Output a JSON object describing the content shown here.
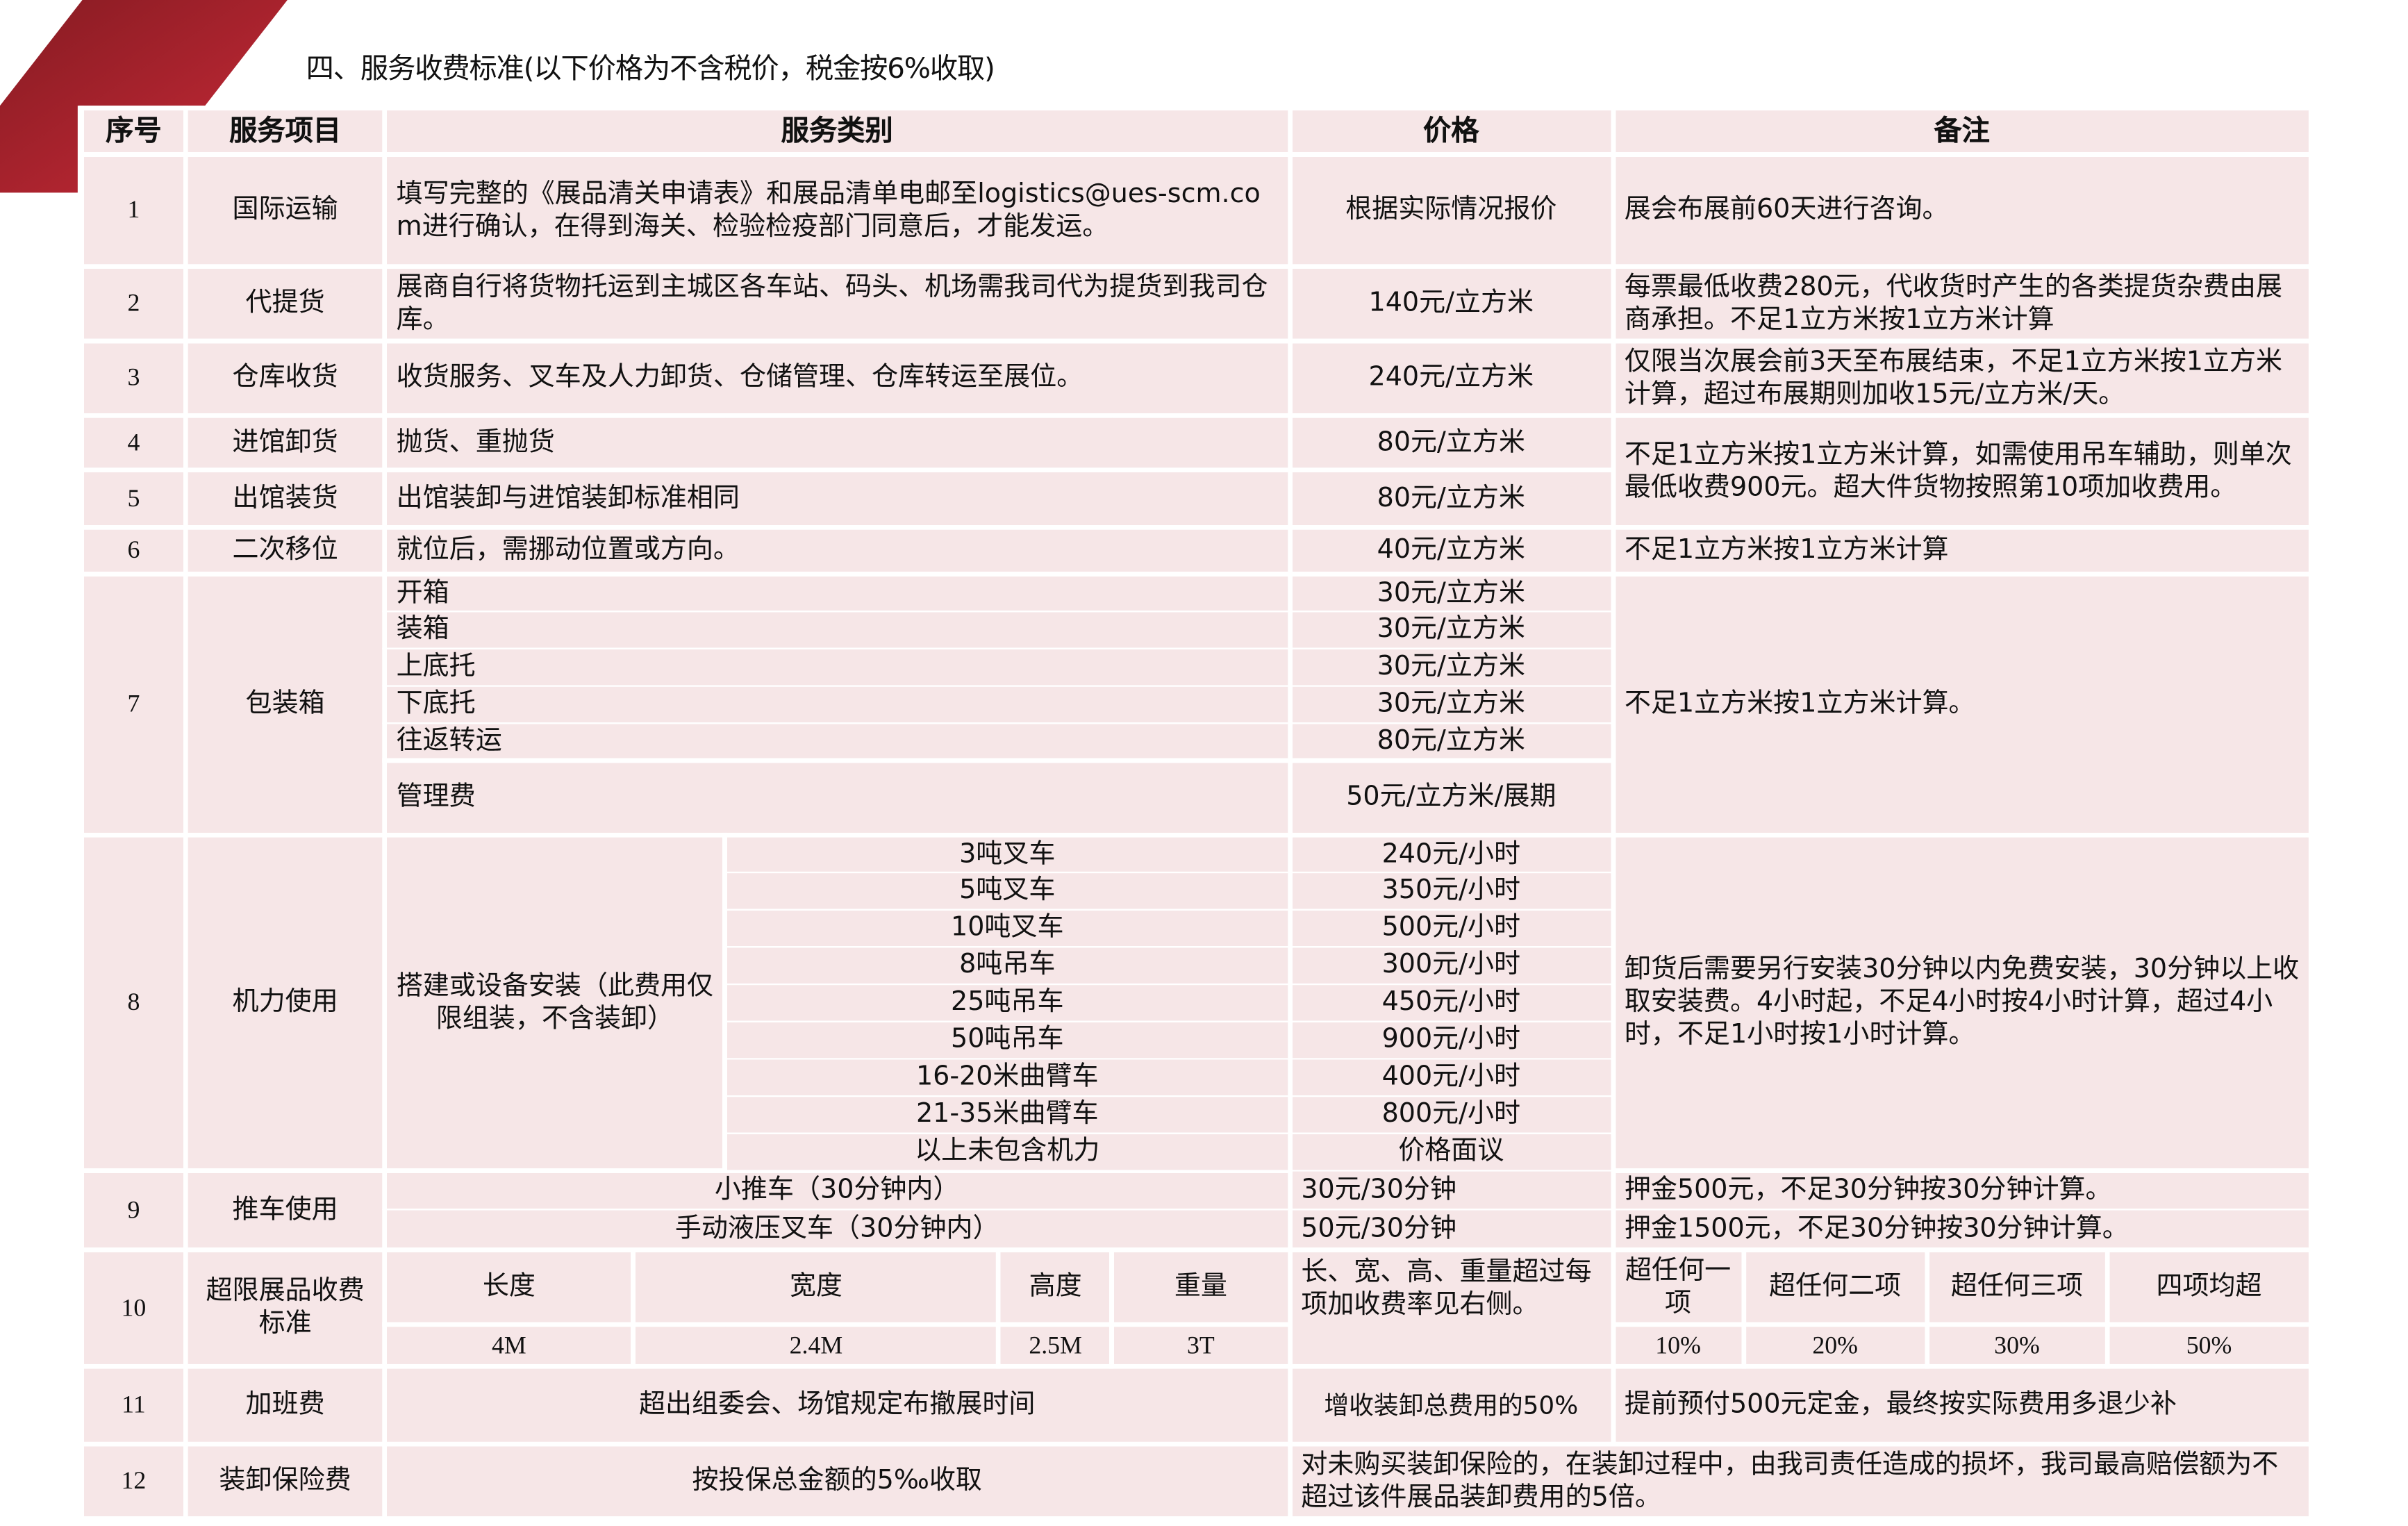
{
  "deco": {
    "color_dark": "#861b22",
    "color_light": "#c92a38"
  },
  "title": "四、服务收费标准(以下价格为不含税价，税金按6%收取)",
  "table": {
    "headers": [
      "序号",
      "服务项目",
      "服务类别",
      "价格",
      "备注"
    ],
    "rows": [
      {
        "no": "1",
        "item": "国际运输",
        "category": "填写完整的《展品清关申请表》和展品清单电邮至logistics@ues-scm.com进行确认，在得到海关、检验检疫部门同意后，才能发运。",
        "price": "根据实际情况报价",
        "remark": "展会布展前60天进行咨询。"
      },
      {
        "no": "2",
        "item": "代提货",
        "category": "展商自行将货物托运到主城区各车站、码头、机场需我司代为提货到我司仓库。",
        "price": "140元/立方米",
        "remark": "每票最低收费280元，代收货时产生的各类提货杂费由展商承担。不足1立方米按1立方米计算"
      },
      {
        "no": "3",
        "item": "仓库收货",
        "category": "收货服务、叉车及人力卸货、仓储管理、仓库转运至展位。",
        "price": "240元/立方米",
        "remark": "仅限当次展会前3天至布展结束，不足1立方米按1立方米计算，超过布展期则加收15元/立方米/天。"
      },
      {
        "no": "4",
        "item": "进馆卸货",
        "category": "抛货、重抛货",
        "price": "80元/立方米",
        "remark": "不足1立方米按1立方米计算，如需使用吊车辅助，则单次最低收费900元。超大件货物按照第10项加收费用。"
      },
      {
        "no": "5",
        "item": "出馆装货",
        "category": "出馆装卸与进馆装卸标准相同",
        "price": "80元/立方米"
      },
      {
        "no": "6",
        "item": "二次移位",
        "category": "就位后，需挪动位置或方向。",
        "price": "40元/立方米",
        "remark": "不足1立方米按1立方米计算"
      },
      {
        "no": "7",
        "item": "包装箱",
        "remark": "不足1立方米按1立方米计算。",
        "sub": [
          {
            "category": "开箱",
            "price": "30元/立方米"
          },
          {
            "category": "装箱",
            "price": "30元/立方米"
          },
          {
            "category": "上底托",
            "price": "30元/立方米"
          },
          {
            "category": "下底托",
            "price": "30元/立方米"
          },
          {
            "category": "往返转运",
            "price": "80元/立方米"
          },
          {
            "category": "管理费",
            "price": "50元/立方米/展期"
          }
        ]
      },
      {
        "no": "8",
        "item": "机力使用",
        "category": "搭建或设备安装（此费用仅限组装，不含装卸）",
        "remark": "卸货后需要另行安装30分钟以内免费安装，30分钟以上收取安装费。4小时起，不足4小时按4小时计算，超过4小时，不足1小时按1小时计算。",
        "sub": [
          {
            "category": "3吨叉车",
            "price": "240元/小时"
          },
          {
            "category": "5吨叉车",
            "price": "350元/小时"
          },
          {
            "category": "10吨叉车",
            "price": "500元/小时"
          },
          {
            "category": "8吨吊车",
            "price": "300元/小时"
          },
          {
            "category": "25吨吊车",
            "price": "450元/小时"
          },
          {
            "category": "50吨吊车",
            "price": "900元/小时"
          },
          {
            "category": "16-20米曲臂车",
            "price": "400元/小时"
          },
          {
            "category": "21-35米曲臂车",
            "price": "800元/小时"
          },
          {
            "category": "以上未包含机力",
            "price": "价格面议"
          }
        ]
      },
      {
        "no": "9",
        "item": "推车使用",
        "sub": [
          {
            "category": "小推车（30分钟内）",
            "price": "30元/30分钟",
            "remark": "押金500元，不足30分钟按30分钟计算。"
          },
          {
            "category": "手动液压叉车（30分钟内）",
            "price": "50元/30分钟",
            "remark": "押金1500元，不足30分钟按30分钟计算。"
          }
        ]
      },
      {
        "no": "10",
        "item": "超限展品收费标准",
        "dims": [
          {
            "label": "长度",
            "value": "4M"
          },
          {
            "label": "宽度",
            "value": "2.4M"
          },
          {
            "label": "高度",
            "value": "2.5M"
          },
          {
            "label": "重量",
            "value": "3T"
          }
        ],
        "price": "长、宽、高、重量超过每项加收费率见右侧。",
        "rates": [
          {
            "label": "超任何一项",
            "value": "10%"
          },
          {
            "label": "超任何二项",
            "value": "20%"
          },
          {
            "label": "超任何三项",
            "value": "30%"
          },
          {
            "label": "四项均超",
            "value": "50%"
          }
        ]
      },
      {
        "no": "11",
        "item": "加班费",
        "category": "超出组委会、场馆规定布撤展时间",
        "price": "增收装卸总费用的50%",
        "remark": "提前预付500元定金，最终按实际费用多退少补"
      },
      {
        "no": "12",
        "item": "装卸保险费",
        "category": "按投保总金额的5‰收取",
        "remark": "对未购买装卸保险的，在装卸过程中，由我司责任造成的损坏，我司最高赔偿额为不超过该件展品装卸费用的5倍。"
      }
    ]
  }
}
